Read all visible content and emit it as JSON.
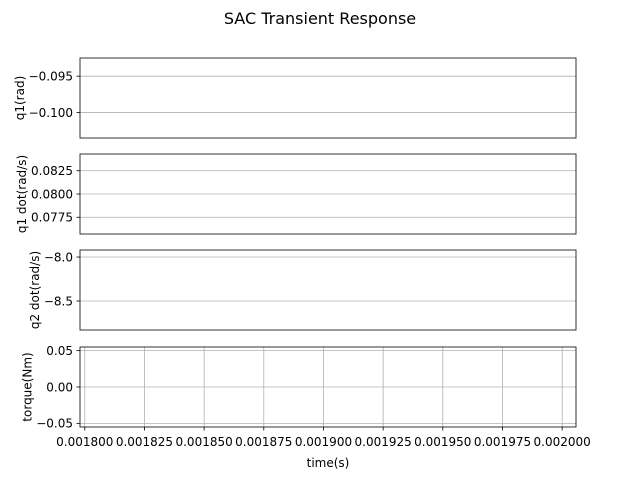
{
  "figure": {
    "title": "SAC Transient Response",
    "background": "#ffffff",
    "grid_color": "#b0b0b0",
    "frame_color": "#000000"
  },
  "chart_data": [
    {
      "type": "line",
      "ylabel": "q1(rad)",
      "yticks": [
        -0.095,
        -0.1
      ],
      "ytick_labels": [
        "−0.095",
        "−0.100"
      ],
      "ylim": [
        -0.1035,
        -0.0925
      ],
      "x_ticks_visible": false,
      "grid": true,
      "series": []
    },
    {
      "type": "line",
      "ylabel": "q1 dot(rad/s)",
      "yticks": [
        0.0825,
        0.08,
        0.0775
      ],
      "ytick_labels": [
        "0.0825",
        "0.0800",
        "0.0775"
      ],
      "ylim": [
        0.0757,
        0.0843
      ],
      "x_ticks_visible": false,
      "grid": true,
      "series": []
    },
    {
      "type": "line",
      "ylabel": "q2 dot(rad/s)",
      "yticks": [
        -8.0,
        -8.5
      ],
      "ytick_labels": [
        "−8.0",
        "−8.5"
      ],
      "ylim": [
        -8.83,
        -7.92
      ],
      "x_ticks_visible": false,
      "grid": true,
      "series": []
    },
    {
      "type": "line",
      "ylabel": "torque(Nm)",
      "xlabel": "time(s)",
      "yticks": [
        0.05,
        0.0,
        -0.05
      ],
      "ytick_labels": [
        "0.05",
        "0.00",
        "−0.05"
      ],
      "ylim": [
        -0.055,
        0.055
      ],
      "xticks": [
        0.0018,
        0.001825,
        0.00185,
        0.001875,
        0.0019,
        0.001925,
        0.00195,
        0.001975,
        0.002
      ],
      "xtick_labels": [
        "0.001800",
        "0.001825",
        "0.001850",
        "0.001875",
        "0.001900",
        "0.001925",
        "0.001950",
        "0.001975",
        "0.002000"
      ],
      "xlim": [
        0.001798,
        0.0020058
      ],
      "x_ticks_visible": true,
      "grid": true,
      "series": []
    }
  ]
}
